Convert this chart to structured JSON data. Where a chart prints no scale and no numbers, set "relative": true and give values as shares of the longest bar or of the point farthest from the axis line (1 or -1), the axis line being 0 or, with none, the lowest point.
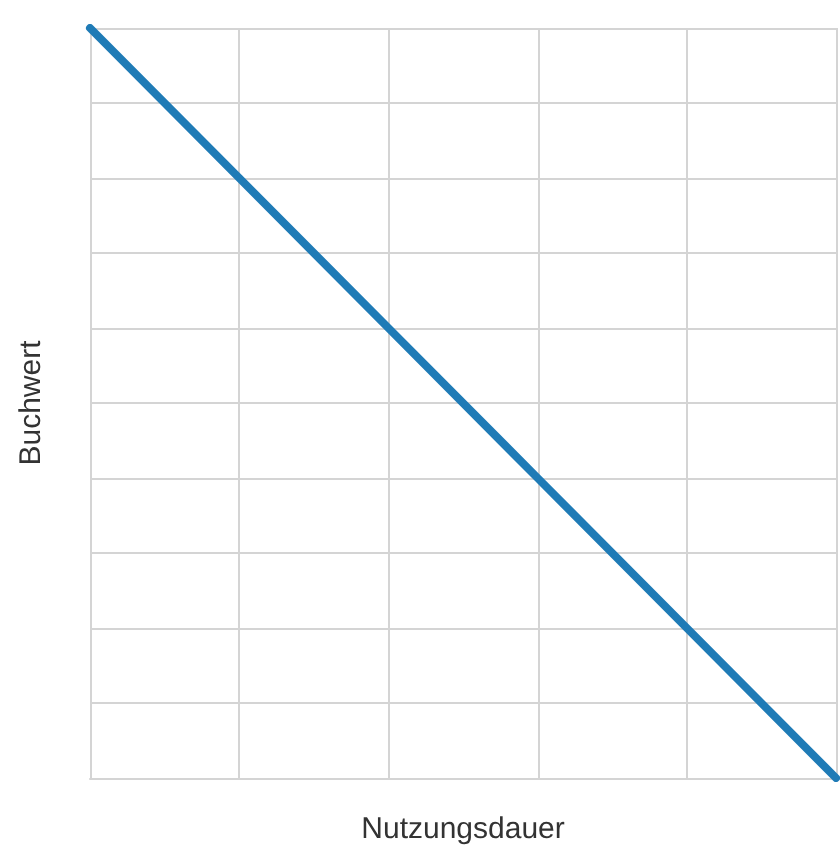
{
  "chart_data": {
    "type": "line",
    "relative": true,
    "xlabel": "Nutzungsdauer",
    "ylabel": "Buchwert",
    "categories": [
      null,
      null,
      null,
      null,
      null,
      null
    ],
    "series": [
      {
        "color": "#1f7bb6",
        "values": [
          1,
          0.8,
          0.6,
          0.4,
          0.2,
          0
        ]
      }
    ],
    "grid": true,
    "marker": "none",
    "line_style": "solid",
    "tick_labels": false
  }
}
